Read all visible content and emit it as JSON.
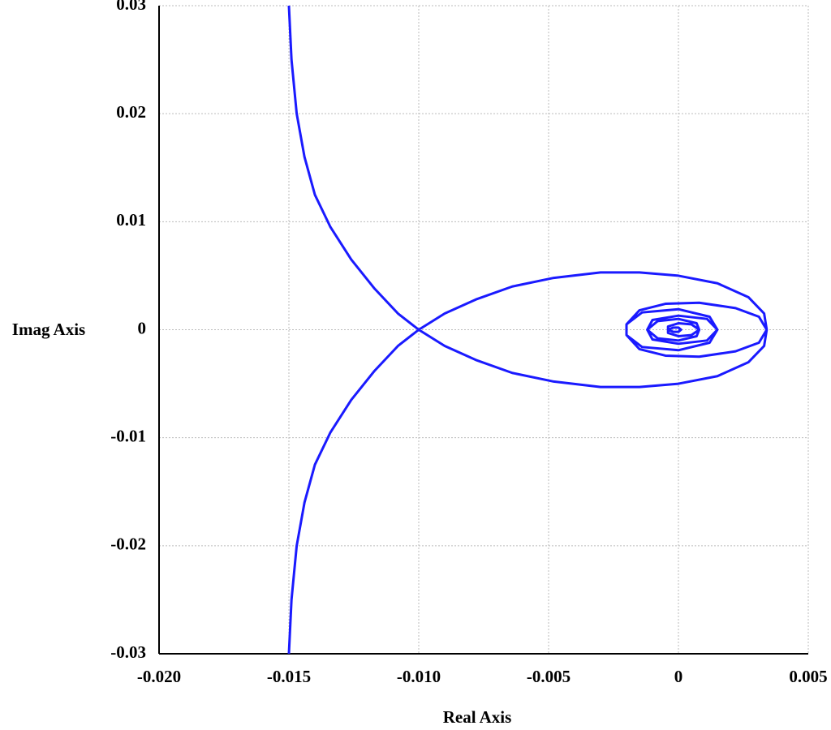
{
  "chart_data": {
    "type": "line",
    "xlabel": "Real Axis",
    "ylabel": "Imag Axis",
    "x": [
      -0.015,
      -0.0149,
      -0.0147,
      -0.0144,
      -0.014,
      -0.0134,
      -0.0126,
      -0.0117,
      -0.0108,
      -0.01,
      -0.009,
      -0.0078,
      -0.0064,
      -0.0048,
      -0.003,
      -0.0015,
      0.0,
      0.0015,
      0.0027,
      0.0033,
      0.0034,
      0.0031,
      0.0022,
      0.0008,
      -0.0005,
      -0.0015,
      -0.002,
      -0.002,
      -0.0014,
      0.0,
      0.0012,
      0.0015,
      0.0011,
      0.0,
      -0.001,
      -0.0012,
      -0.0008,
      0.0,
      0.0007,
      0.0008,
      0.0005,
      0.0,
      -0.0004,
      -0.0004,
      -0.0002,
      0.0,
      0.0001,
      0.0,
      null,
      -0.015,
      -0.0149,
      -0.0147,
      -0.0144,
      -0.014,
      -0.0134,
      -0.0126,
      -0.0117,
      -0.0108,
      -0.01,
      -0.009,
      -0.0078,
      -0.0064,
      -0.0048,
      -0.003,
      -0.0015,
      0.0,
      0.0015,
      0.0027,
      0.0033,
      0.0034,
      0.0031,
      0.0022,
      0.0008,
      -0.0005,
      -0.0015,
      -0.002,
      -0.002,
      -0.0014,
      0.0,
      0.0012,
      0.0015,
      0.0011,
      0.0,
      -0.001,
      -0.0012,
      -0.0008,
      0.0,
      0.0007,
      0.0008,
      0.0005,
      0.0,
      -0.0004,
      -0.0004,
      -0.0002,
      0.0,
      0.0001,
      0.0
    ],
    "values": [
      0.03,
      0.025,
      0.02,
      0.016,
      0.0125,
      0.0095,
      0.0065,
      0.0038,
      0.0015,
      0.0,
      -0.0015,
      -0.0028,
      -0.004,
      -0.0048,
      -0.0053,
      -0.0053,
      -0.005,
      -0.0043,
      -0.003,
      -0.0015,
      0.0,
      0.0012,
      0.002,
      0.0025,
      0.0024,
      0.0018,
      0.0005,
      -0.0005,
      -0.0016,
      -0.0019,
      -0.0012,
      0.0,
      0.001,
      0.0013,
      0.0009,
      0.0,
      -0.0008,
      -0.001,
      -0.0006,
      0.0,
      0.0005,
      0.0006,
      0.0003,
      0.0,
      -0.0002,
      -0.0002,
      0.0,
      0.0,
      null,
      -0.03,
      -0.025,
      -0.02,
      -0.016,
      -0.0125,
      -0.0095,
      -0.0065,
      -0.0038,
      -0.0015,
      0.0,
      0.0015,
      0.0028,
      0.004,
      0.0048,
      0.0053,
      0.0053,
      0.005,
      0.0043,
      0.003,
      0.0015,
      0.0,
      -0.0012,
      -0.002,
      -0.0025,
      -0.0024,
      -0.0018,
      -0.0005,
      0.0005,
      0.0016,
      0.0019,
      0.0012,
      0.0,
      -0.001,
      -0.0013,
      -0.0009,
      0.0,
      0.0008,
      0.001,
      0.0006,
      0.0,
      -0.0005,
      -0.0006,
      -0.0003,
      0.0,
      0.0002,
      0.0002,
      0.0,
      0.0
    ],
    "color": "#1a1aff",
    "xlim": [
      -0.02,
      0.005
    ],
    "xticks": [
      {
        "value": -0.02,
        "label": "-0.020"
      },
      -0.015,
      {
        "value": -0.01,
        "label": "-0.010"
      },
      -0.005,
      0,
      0.005
    ],
    "ylim": [
      -0.03,
      0.03
    ],
    "yticks": [
      -0.03,
      -0.02,
      -0.01,
      0,
      0.01,
      0.02,
      0.03
    ],
    "grid": true
  }
}
